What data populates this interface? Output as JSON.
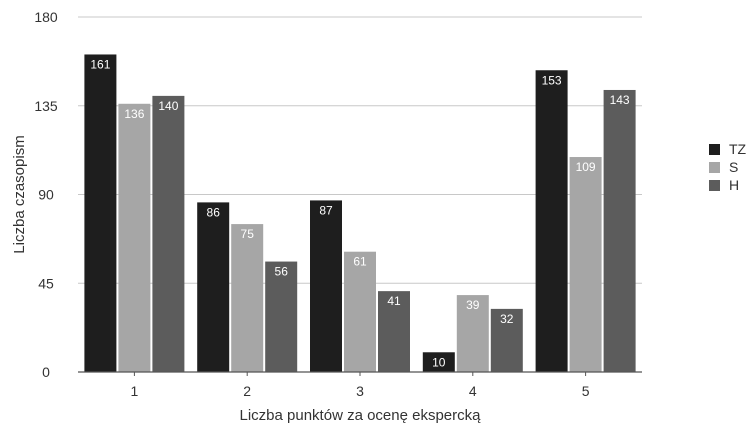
{
  "chart_data": {
    "type": "bar",
    "categories": [
      "1",
      "2",
      "3",
      "4",
      "5"
    ],
    "series": [
      {
        "name": "TZ",
        "values": [
          161,
          86,
          87,
          10,
          153
        ],
        "color": "#1e1e1e",
        "label_color": "#ffffff"
      },
      {
        "name": "S",
        "values": [
          136,
          75,
          61,
          39,
          109
        ],
        "color": "#a6a6a6",
        "label_color": "#ffffff"
      },
      {
        "name": "H",
        "values": [
          140,
          56,
          41,
          32,
          143
        ],
        "color": "#5c5c5c",
        "label_color": "#ffffff"
      }
    ],
    "xlabel": "Liczba punktów za ocenę ekspercką",
    "ylabel": "Liczba czasopism",
    "ylim": [
      0,
      180
    ],
    "yticks": [
      0,
      45,
      90,
      135,
      180
    ],
    "grid": true,
    "legend": "right"
  }
}
